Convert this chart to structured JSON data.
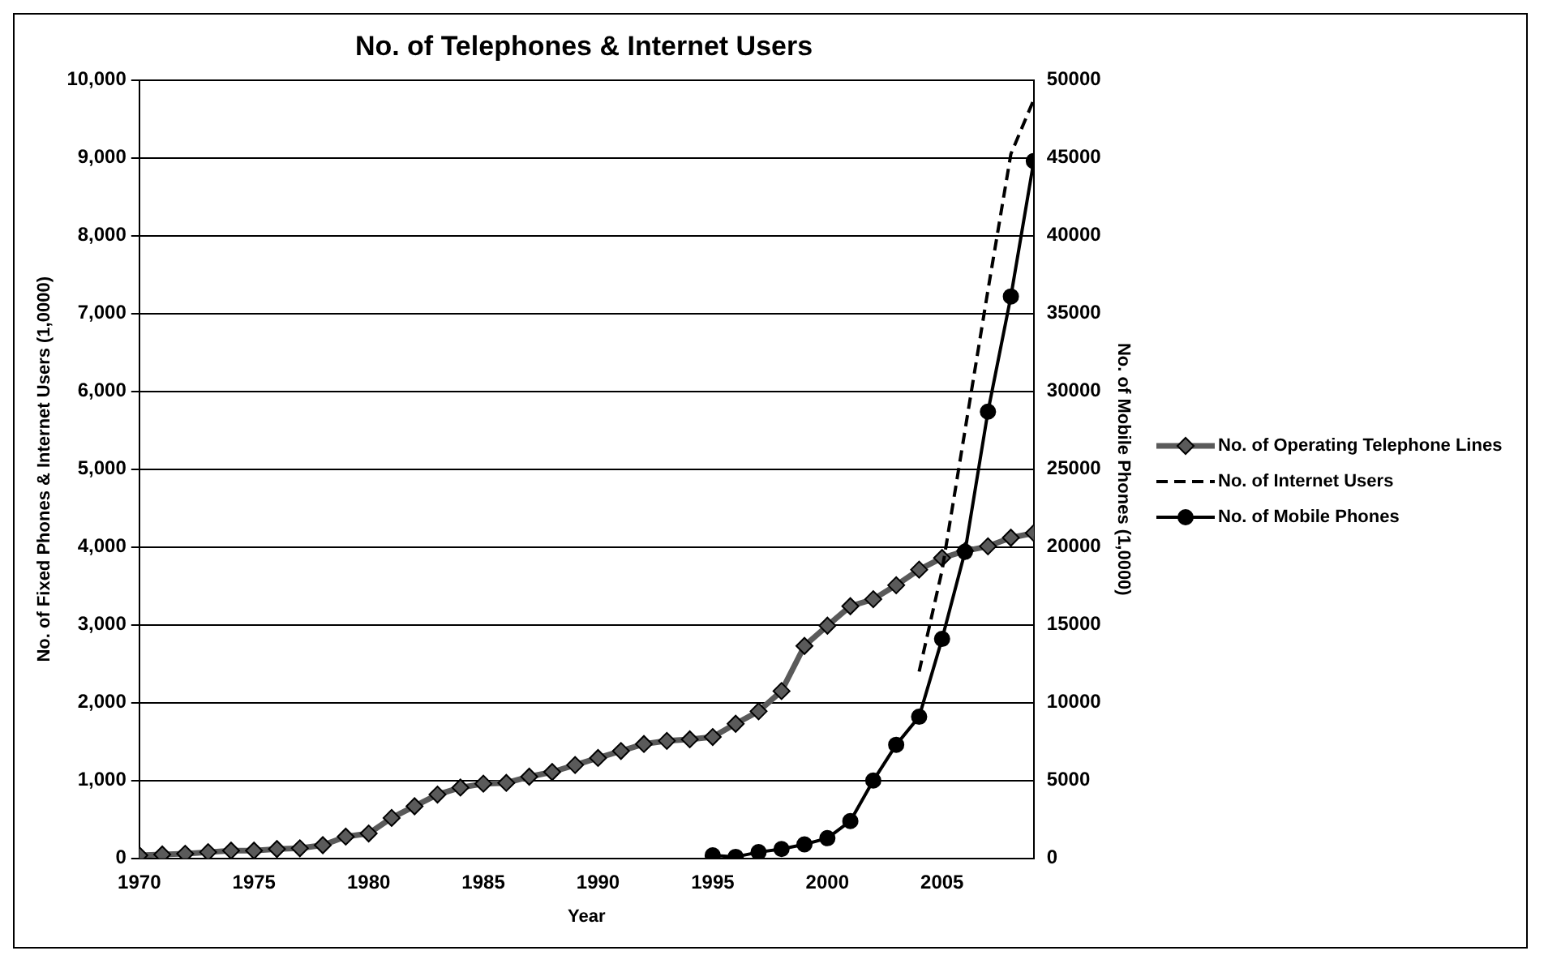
{
  "chart_data": {
    "type": "line",
    "title": "No. of Telephones & Internet Users",
    "xlabel": "Year",
    "ylabel": "No. of Fixed Phones & Internet Users (1,0000)",
    "y2label": "No. of Mobile Phones (1,0000)",
    "xlim": [
      1970,
      2009
    ],
    "xticks": [
      1970,
      1975,
      1980,
      1985,
      1990,
      1995,
      2000,
      2005
    ],
    "ylim": [
      0,
      10000
    ],
    "yticks": [
      {
        "value": 0,
        "label": "0"
      },
      {
        "value": 1000,
        "label": "1,000"
      },
      {
        "value": 2000,
        "label": "2,000"
      },
      {
        "value": 3000,
        "label": "3,000"
      },
      {
        "value": 4000,
        "label": "4,000"
      },
      {
        "value": 5000,
        "label": "5,000"
      },
      {
        "value": 6000,
        "label": "6,000"
      },
      {
        "value": 7000,
        "label": "7,000"
      },
      {
        "value": 8000,
        "label": "8,000"
      },
      {
        "value": 9000,
        "label": "9,000"
      },
      {
        "value": 10000,
        "label": "10,000"
      }
    ],
    "y2lim": [
      0,
      50000
    ],
    "y2ticks": [
      0,
      5000,
      10000,
      15000,
      20000,
      25000,
      30000,
      35000,
      40000,
      45000,
      50000
    ],
    "grid": "y",
    "legend": "right",
    "series": [
      {
        "name": "No. of Operating Telephone Lines",
        "color": "#5a5a5a",
        "marker": "diamond",
        "line_style": "solid",
        "x": [
          1970,
          1971,
          1972,
          1973,
          1974,
          1975,
          1976,
          1977,
          1978,
          1979,
          1980,
          1981,
          1982,
          1983,
          1984,
          1985,
          1986,
          1987,
          1988,
          1989,
          1990,
          1991,
          1992,
          1993,
          1994,
          1995,
          1996,
          1997,
          1998,
          1999,
          2000,
          2001,
          2002,
          2003,
          2004,
          2005,
          2006,
          2007,
          2008,
          2009
        ],
        "values": [
          40,
          50,
          60,
          80,
          100,
          100,
          120,
          130,
          170,
          280,
          320,
          520,
          670,
          820,
          910,
          960,
          970,
          1050,
          1110,
          1200,
          1290,
          1380,
          1470,
          1510,
          1530,
          1560,
          1730,
          1890,
          2150,
          2730,
          2990,
          3240,
          3330,
          3510,
          3710,
          3860,
          3950,
          4010,
          4120,
          4180
        ]
      },
      {
        "name": "No. of Internet Users",
        "color": "#000000",
        "marker": "none",
        "line_style": "dashed",
        "x": [
          2004,
          2005,
          2006,
          2007,
          2008,
          2009
        ],
        "values": [
          2400,
          3700,
          5500,
          7300,
          9050,
          9750
        ]
      },
      {
        "name": "No. of Mobile Phones",
        "color": "#000000",
        "marker": "circle",
        "line_style": "solid",
        "axis": "y2",
        "x": [
          1995,
          1996,
          1997,
          1998,
          1999,
          2000,
          2001,
          2002,
          2003,
          2004,
          2005,
          2006,
          2007,
          2008,
          2009
        ],
        "values": [
          200,
          100,
          400,
          600,
          900,
          1300,
          2400,
          5000,
          7300,
          9100,
          14100,
          19700,
          28700,
          36100,
          44800
        ]
      }
    ]
  }
}
